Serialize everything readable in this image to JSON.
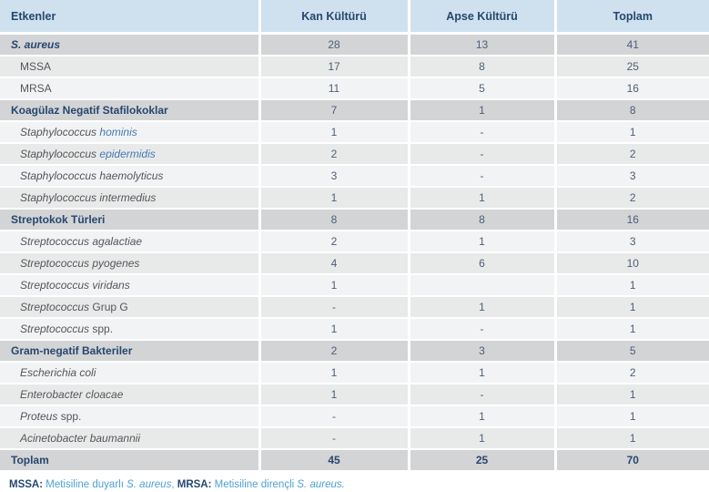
{
  "table": {
    "columns": [
      {
        "label": "Etkenler"
      },
      {
        "label": "Kan Kültürü"
      },
      {
        "label": "Apse Kültürü"
      },
      {
        "label": "Toplam"
      }
    ],
    "rows": [
      {
        "type": "section",
        "label_parts": [
          {
            "text": "S. aureus",
            "italic": true
          }
        ],
        "values": [
          "28",
          "13",
          "41"
        ]
      },
      {
        "type": "data",
        "shade": "dark",
        "indent": true,
        "label_parts": [
          {
            "text": "MSSA"
          }
        ],
        "values": [
          "17",
          "8",
          "25"
        ]
      },
      {
        "type": "data",
        "shade": "light",
        "indent": true,
        "label_parts": [
          {
            "text": "MRSA"
          }
        ],
        "values": [
          "11",
          "5",
          "16"
        ]
      },
      {
        "type": "section",
        "label_parts": [
          {
            "text": "Koagülaz Negatif Stafilokoklar"
          }
        ],
        "values": [
          "7",
          "1",
          "8"
        ]
      },
      {
        "type": "data",
        "shade": "light",
        "indent": true,
        "label_parts": [
          {
            "text": "Staphylococcus ",
            "italic": true
          },
          {
            "text": "hominis",
            "italic": true,
            "blue": true
          }
        ],
        "values": [
          "1",
          "-",
          "1"
        ]
      },
      {
        "type": "data",
        "shade": "dark",
        "indent": true,
        "label_parts": [
          {
            "text": "Staphylococcus ",
            "italic": true
          },
          {
            "text": "epidermidis",
            "italic": true,
            "blue": true
          }
        ],
        "values": [
          "2",
          "-",
          "2"
        ]
      },
      {
        "type": "data",
        "shade": "light",
        "indent": true,
        "label_parts": [
          {
            "text": "Staphylococcus haemolyticus",
            "italic": true
          }
        ],
        "values": [
          "3",
          "-",
          "3"
        ]
      },
      {
        "type": "data",
        "shade": "dark",
        "indent": true,
        "label_parts": [
          {
            "text": "Staphylococcus intermedius",
            "italic": true
          }
        ],
        "values": [
          "1",
          "1",
          "2"
        ]
      },
      {
        "type": "section",
        "label_parts": [
          {
            "text": "Streptokok Türleri"
          }
        ],
        "values": [
          "8",
          "8",
          "16"
        ]
      },
      {
        "type": "data",
        "shade": "light",
        "indent": true,
        "label_parts": [
          {
            "text": "Streptococcus agalactiae",
            "italic": true
          }
        ],
        "values": [
          "2",
          "1",
          "3"
        ]
      },
      {
        "type": "data",
        "shade": "dark",
        "indent": true,
        "label_parts": [
          {
            "text": "Streptococcus pyogenes",
            "italic": true
          }
        ],
        "values": [
          "4",
          "6",
          "10"
        ]
      },
      {
        "type": "data",
        "shade": "light",
        "indent": true,
        "label_parts": [
          {
            "text": "Streptococcus viridans",
            "italic": true
          }
        ],
        "values": [
          "1",
          "",
          "1"
        ]
      },
      {
        "type": "data",
        "shade": "dark",
        "indent": true,
        "label_parts": [
          {
            "text": "Streptococcus",
            "italic": true
          },
          {
            "text": " Grup G"
          }
        ],
        "values": [
          "-",
          "1",
          "1"
        ]
      },
      {
        "type": "data",
        "shade": "light",
        "indent": true,
        "label_parts": [
          {
            "text": "Streptococcus",
            "italic": true
          },
          {
            "text": " spp."
          }
        ],
        "values": [
          "1",
          "-",
          "1"
        ]
      },
      {
        "type": "section",
        "label_parts": [
          {
            "text": "Gram-negatif Bakteriler"
          }
        ],
        "values": [
          "2",
          "3",
          "5"
        ]
      },
      {
        "type": "data",
        "shade": "light",
        "indent": true,
        "label_parts": [
          {
            "text": "Escherichia coli",
            "italic": true
          }
        ],
        "values": [
          "1",
          "1",
          "2"
        ]
      },
      {
        "type": "data",
        "shade": "dark",
        "indent": true,
        "label_parts": [
          {
            "text": "Enterobacter cloacae",
            "italic": true
          }
        ],
        "values": [
          "1",
          "-",
          "1"
        ]
      },
      {
        "type": "data",
        "shade": "light",
        "indent": true,
        "label_parts": [
          {
            "text": "Proteus",
            "italic": true
          },
          {
            "text": " spp."
          }
        ],
        "values": [
          "-",
          "1",
          "1"
        ]
      },
      {
        "type": "data",
        "shade": "dark",
        "indent": true,
        "label_parts": [
          {
            "text": "Acinetobacter baumannii",
            "italic": true
          }
        ],
        "values": [
          "-",
          "1",
          "1"
        ]
      },
      {
        "type": "total",
        "label_parts": [
          {
            "text": "Toplam"
          }
        ],
        "values": [
          "45",
          "25",
          "70"
        ]
      }
    ]
  },
  "footnote": {
    "parts": [
      {
        "text": "MSSA:",
        "bold": true
      },
      {
        "text": " Metisiline duyarlı "
      },
      {
        "text": "S. aureus",
        "italic": true
      },
      {
        "text": ", "
      },
      {
        "text": "MRSA:",
        "bold": true
      },
      {
        "text": " Metisiline dirençli "
      },
      {
        "text": "S. aureus.",
        "italic": true
      }
    ]
  },
  "colors": {
    "header_bg": "#cfe1ee",
    "section_bg": "#d3d4d6",
    "row_dark": "#e8eaea",
    "row_light": "#f2f3f4",
    "navy_text": "#26476e",
    "number_text": "#4e5e74",
    "species_text": "#54565b",
    "link_blue": "#4679b2",
    "footnote_blue": "#4d9fd3"
  }
}
